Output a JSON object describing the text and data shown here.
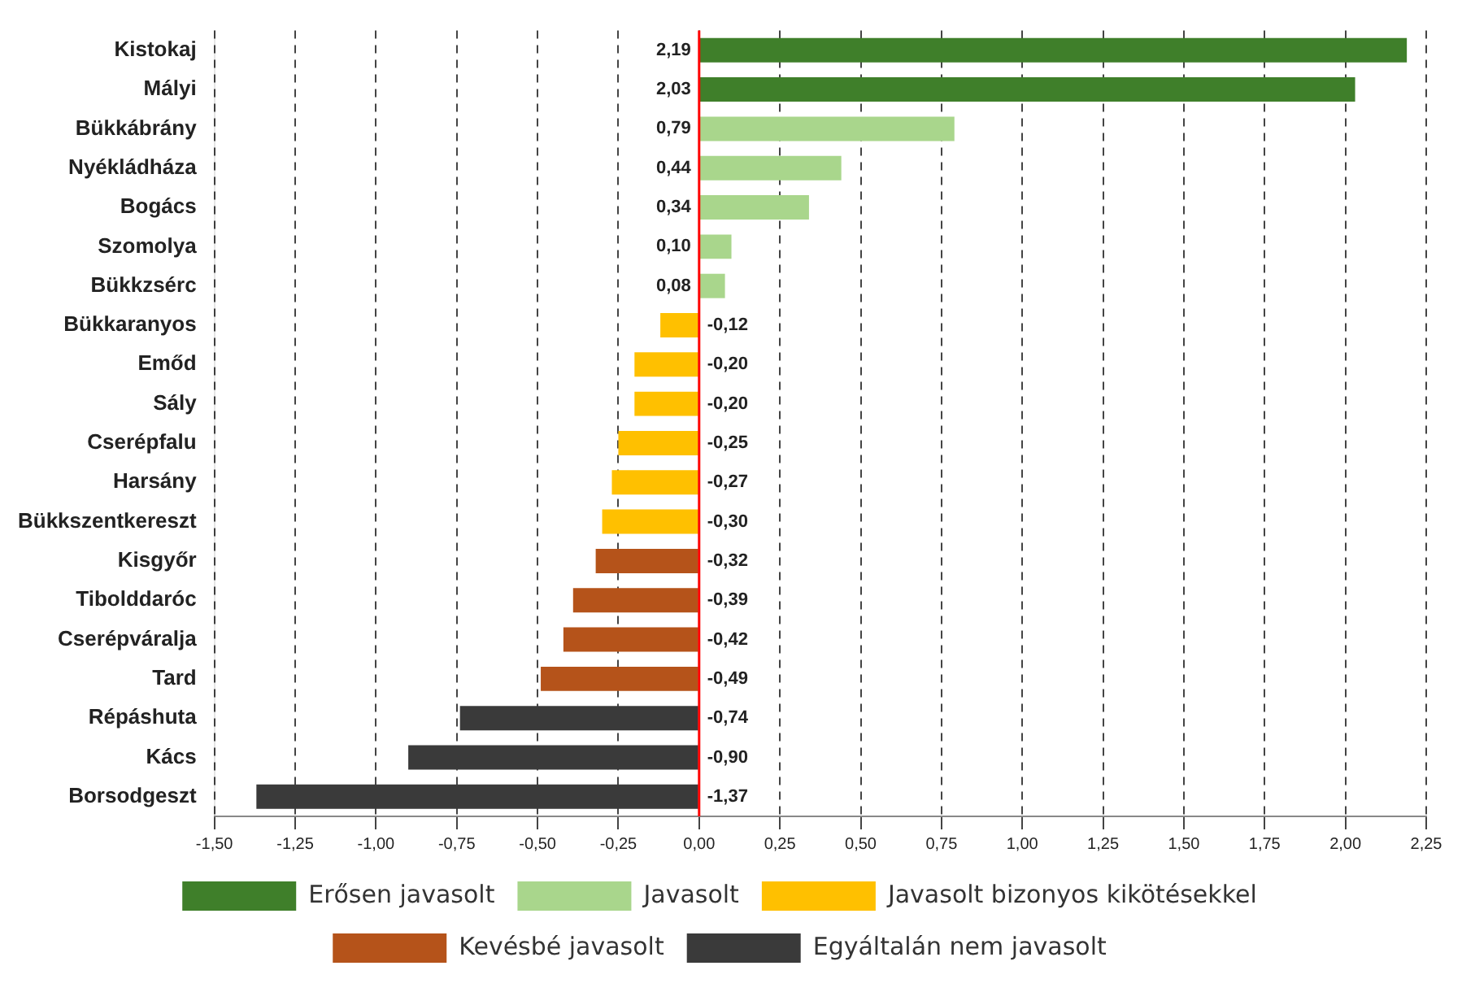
{
  "chart_data": {
    "type": "bar",
    "orientation": "horizontal",
    "stacked": true,
    "categories": [
      "Kistokaj",
      "Mályi",
      "Bükkábrány",
      "Nyékládháza",
      "Bogács",
      "Szomolya",
      "Bükkzsérc",
      "Bükkaranyos",
      "Emőd",
      "Sály",
      "Cserépfalu",
      "Harsány",
      "Bükkszentkereszt",
      "Kisgyőr",
      "Tibolddaróc",
      "Cserépváralja",
      "Tard",
      "Répáshuta",
      "Kács",
      "Borsodgeszt"
    ],
    "series": [
      {
        "name": "Erősen javasolt",
        "color": "#3f7f2a",
        "values": [
          2.19,
          2.03,
          null,
          null,
          null,
          null,
          null,
          null,
          null,
          null,
          null,
          null,
          null,
          null,
          null,
          null,
          null,
          null,
          null,
          null
        ],
        "value_labels": [
          "2,19",
          "2,03",
          null,
          null,
          null,
          null,
          null,
          null,
          null,
          null,
          null,
          null,
          null,
          null,
          null,
          null,
          null,
          null,
          null,
          null
        ]
      },
      {
        "name": "Javasolt",
        "color": "#a9d68c",
        "values": [
          null,
          null,
          0.79,
          0.44,
          0.34,
          0.1,
          0.08,
          null,
          null,
          null,
          null,
          null,
          null,
          null,
          null,
          null,
          null,
          null,
          null,
          null
        ],
        "value_labels": [
          null,
          null,
          "0,79",
          "0,44",
          "0,34",
          "0,10",
          "0,08",
          null,
          null,
          null,
          null,
          null,
          null,
          null,
          null,
          null,
          null,
          null,
          null,
          null
        ]
      },
      {
        "name": "Javasolt bizonyos kikötésekkel",
        "color": "#ffc000",
        "values": [
          null,
          null,
          null,
          null,
          null,
          null,
          null,
          -0.12,
          -0.2,
          -0.2,
          -0.25,
          -0.27,
          -0.3,
          null,
          null,
          null,
          null,
          null,
          null,
          null
        ],
        "value_labels": [
          null,
          null,
          null,
          null,
          null,
          null,
          null,
          "-0,12",
          "-0,20",
          "-0,20",
          "-0,25",
          "-0,27",
          "-0,30",
          null,
          null,
          null,
          null,
          null,
          null,
          null
        ]
      },
      {
        "name": "Kevésbé javasolt",
        "color": "#b5531a",
        "values": [
          null,
          null,
          null,
          null,
          null,
          null,
          null,
          null,
          null,
          null,
          null,
          null,
          null,
          -0.32,
          -0.39,
          -0.42,
          -0.49,
          null,
          null,
          null
        ],
        "value_labels": [
          null,
          null,
          null,
          null,
          null,
          null,
          null,
          null,
          null,
          null,
          null,
          null,
          null,
          "-0,32",
          "-0,39",
          "-0,42",
          "-0,49",
          null,
          null,
          null
        ]
      },
      {
        "name": "Egyáltalán nem javasolt",
        "color": "#3a3a3a",
        "values": [
          null,
          null,
          null,
          null,
          null,
          null,
          null,
          null,
          null,
          null,
          null,
          null,
          null,
          null,
          null,
          null,
          null,
          -0.74,
          -0.9,
          -1.37
        ],
        "value_labels": [
          null,
          null,
          null,
          null,
          null,
          null,
          null,
          null,
          null,
          null,
          null,
          null,
          null,
          null,
          null,
          null,
          null,
          "-0,74",
          "-0,90",
          "-1,37"
        ]
      }
    ],
    "xlim": [
      -1.5,
      2.25
    ],
    "xticks": [
      {
        "value": -1.5,
        "label": "-1,50"
      },
      {
        "value": -1.25,
        "label": "-1,25"
      },
      {
        "value": -1,
        "label": "-1,00"
      },
      {
        "value": -0.75,
        "label": "-0,75"
      },
      {
        "value": -0.5,
        "label": "-0,50"
      },
      {
        "value": -0.25,
        "label": "-0,25"
      },
      {
        "value": 0,
        "label": "0,00"
      },
      {
        "value": 0.25,
        "label": "0,25"
      },
      {
        "value": 0.5,
        "label": "0,50"
      },
      {
        "value": 0.75,
        "label": "0,75"
      },
      {
        "value": 1,
        "label": "1,00"
      },
      {
        "value": 1.25,
        "label": "1,25"
      },
      {
        "value": 1.5,
        "label": "1,50"
      },
      {
        "value": 1.75,
        "label": "1,75"
      },
      {
        "value": 2,
        "label": "2,00"
      },
      {
        "value": 2.25,
        "label": "2,25"
      }
    ],
    "ref_lines": [
      {
        "axis": "x",
        "value": 0,
        "color": "#ff0000"
      }
    ],
    "grid": "x",
    "legend": "bottom"
  }
}
